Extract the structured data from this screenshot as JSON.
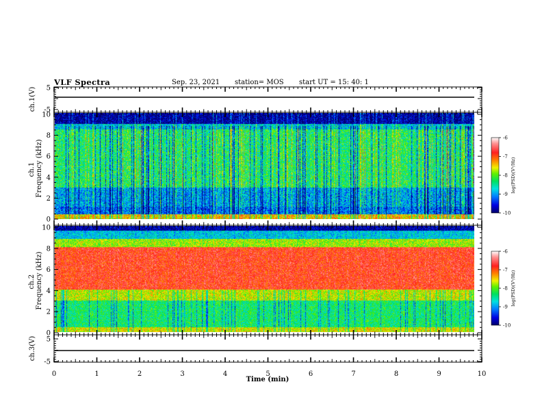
{
  "header": {
    "title": "VLF Spectra",
    "date": "Sep. 23, 2021",
    "station": "station= MOS",
    "start": "start  UT  =   15: 40: 1"
  },
  "colors": {
    "spectrogram_scale": [
      "#00006a",
      "#0000e0",
      "#0080ff",
      "#00e0e0",
      "#00e060",
      "#60f000",
      "#f0f000",
      "#ff8000",
      "#ff2020",
      "#ff9090",
      "#ffffff"
    ]
  },
  "chart_data": [
    {
      "type": "line",
      "panel": "ch1-waveform",
      "ylabel": "ch.1(V)",
      "ylim": [
        -5,
        5
      ],
      "yticks": [
        "5",
        "-5"
      ],
      "x_range_min": [
        0,
        9.83
      ],
      "series": [
        {
          "values": [
            0,
            0
          ]
        }
      ]
    },
    {
      "type": "heatmap",
      "panel": "ch1-spectrogram",
      "ylabel": "ch.1\nFrequency (kHz)",
      "ylim": [
        0,
        10
      ],
      "yticks": [
        "0",
        "2",
        "4",
        "6",
        "8",
        "10"
      ],
      "x_range_min": [
        0,
        9.83
      ],
      "colorbar": {
        "label": "log(PSD)(V²/Hz)",
        "range": [
          -10,
          -6
        ],
        "ticks": [
          "-6",
          "-7",
          "-8",
          "-9",
          "-10"
        ]
      },
      "description_profile": "broadband noise 0-9 kHz around log(PSD) -8 with impulsive vertical bursts; intense layer below 0.5 kHz; dark band above 9 kHz"
    },
    {
      "type": "heatmap",
      "panel": "ch2-spectrogram",
      "ylabel": "ch.2\nFrequency (kHz)",
      "ylim": [
        0,
        10
      ],
      "yticks": [
        "0",
        "2",
        "4",
        "6",
        "8",
        "10"
      ],
      "x_range_min": [
        0,
        9.83
      ],
      "colorbar": {
        "label": "log(PSD)(V²/Hz)",
        "range": [
          -10,
          -6
        ],
        "ticks": [
          "-6",
          "-7",
          "-8",
          "-9",
          "-10"
        ]
      },
      "description_profile": "strong band 4-8 kHz near log(PSD) -6.5; weaker below 3 kHz; dark above 9.5 kHz"
    },
    {
      "type": "line",
      "panel": "ch3-waveform",
      "ylabel": "ch.3(V)",
      "ylim": [
        -5,
        5
      ],
      "yticks": [
        "5",
        "-5"
      ],
      "x_range_min": [
        0,
        9.83
      ],
      "series": [
        {
          "values": [
            0,
            0
          ]
        }
      ]
    }
  ],
  "xaxis": {
    "label": "Time (min)",
    "range": [
      0,
      10
    ],
    "ticks": [
      "0",
      "1",
      "2",
      "3",
      "4",
      "5",
      "6",
      "7",
      "8",
      "9",
      "10"
    ]
  }
}
